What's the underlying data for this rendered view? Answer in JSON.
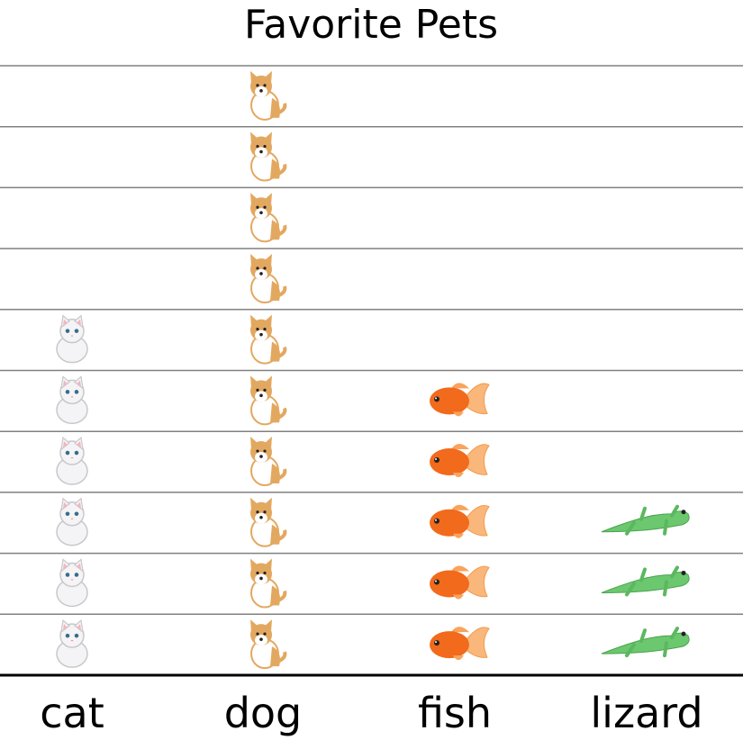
{
  "chart_data": {
    "type": "pictograph",
    "title": "Favorite Pets",
    "categories": [
      "cat",
      "dog",
      "fish",
      "lizard"
    ],
    "values": [
      6,
      10,
      5,
      3
    ],
    "icons": [
      "cat-icon",
      "dog-icon",
      "fish-icon",
      "lizard-icon"
    ],
    "ylim": [
      0,
      10
    ],
    "grid": true,
    "colors": {
      "grid": "#808080",
      "axis": "#000000",
      "cat": "#f4f4f6",
      "dog": "#e3a860",
      "fish": "#f26a1b",
      "lizard": "#6cc86e"
    }
  }
}
